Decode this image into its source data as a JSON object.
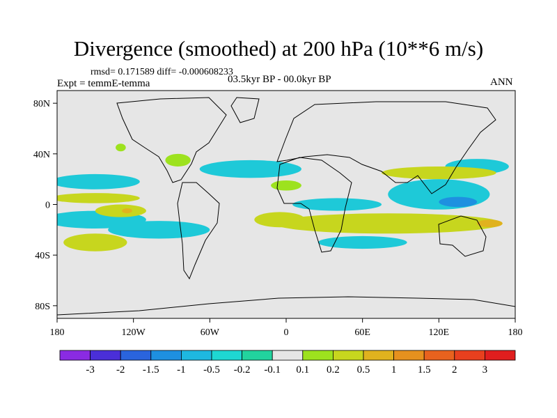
{
  "chart_data": {
    "type": "heatmap",
    "title": "Divergence (smoothed) at 200 hPa (10**6 m/s)",
    "stats_text": "rmsd= 0.171589 diff= -0.000608233",
    "left_label": "Expt = temmE-temma",
    "center_label": "03.5kyr BP - 00.0kyr BP",
    "right_label": "ANN",
    "x_axis": {
      "range": [
        -180,
        180
      ],
      "tick_labels": [
        "180",
        "120W",
        "60W",
        "0",
        "60E",
        "120E",
        "180"
      ]
    },
    "y_axis": {
      "range": [
        -90,
        90
      ],
      "tick_labels": [
        "80N",
        "40N",
        "0",
        "40S",
        "80S"
      ]
    },
    "colorbar": {
      "labels": [
        "-3",
        "-2",
        "-1.5",
        "-1",
        "-0.5",
        "-0.2",
        "-0.1",
        "0.1",
        "0.2",
        "0.5",
        "1",
        "1.5",
        "2",
        "3"
      ],
      "colors": [
        "#8a2be2",
        "#4a2fd8",
        "#2a64dd",
        "#1e90e0",
        "#1eb8e0",
        "#1ed7d2",
        "#22d39e",
        "#e6e6e6",
        "#9de21e",
        "#c7d61e",
        "#e0b21e",
        "#e6911e",
        "#e8621e",
        "#e8401e",
        "#e01e1e"
      ]
    },
    "regions": [
      {
        "label": "negative",
        "color": "#1ec9d8",
        "lon": -150,
        "lat": 18,
        "rx": 35,
        "ry": 6
      },
      {
        "label": "negative",
        "color": "#1ec9d8",
        "lon": -150,
        "lat": -12,
        "rx": 40,
        "ry": 7
      },
      {
        "label": "negative",
        "color": "#1ec9d8",
        "lon": -100,
        "lat": -20,
        "rx": 40,
        "ry": 7
      },
      {
        "label": "negative",
        "color": "#1ec9d8",
        "lon": -28,
        "lat": 28,
        "rx": 40,
        "ry": 7
      },
      {
        "label": "negative",
        "color": "#1ec9d8",
        "lon": 40,
        "lat": 0,
        "rx": 35,
        "ry": 5
      },
      {
        "label": "negative",
        "color": "#1ec9d8",
        "lon": 120,
        "lat": 8,
        "rx": 40,
        "ry": 12
      },
      {
        "label": "negative",
        "color": "#1ec9d8",
        "lon": 60,
        "lat": -30,
        "rx": 35,
        "ry": 5
      },
      {
        "label": "negative",
        "color": "#1ec9d8",
        "lon": 150,
        "lat": 30,
        "rx": 25,
        "ry": 6
      },
      {
        "label": "negative",
        "color": "#1e90e0",
        "lon": 135,
        "lat": 2,
        "rx": 15,
        "ry": 4
      },
      {
        "label": "positive",
        "color": "#c7d61e",
        "lon": -150,
        "lat": -30,
        "rx": 25,
        "ry": 7
      },
      {
        "label": "positive",
        "color": "#c7d61e",
        "lon": -150,
        "lat": 5,
        "rx": 35,
        "ry": 4
      },
      {
        "label": "positive",
        "color": "#c7d61e",
        "lon": -130,
        "lat": -5,
        "rx": 20,
        "ry": 5
      },
      {
        "label": "positive",
        "color": "#c7d61e",
        "lon": -5,
        "lat": -12,
        "rx": 20,
        "ry": 6
      },
      {
        "label": "positive",
        "color": "#c7d61e",
        "lon": 80,
        "lat": -15,
        "rx": 90,
        "ry": 8
      },
      {
        "label": "positive",
        "color": "#c7d61e",
        "lon": 120,
        "lat": 25,
        "rx": 45,
        "ry": 5
      },
      {
        "label": "positive",
        "color": "#9de21e",
        "lon": -85,
        "lat": 35,
        "rx": 10,
        "ry": 5
      },
      {
        "label": "positive",
        "color": "#9de21e",
        "lon": -130,
        "lat": 45,
        "rx": 4,
        "ry": 3
      },
      {
        "label": "positive",
        "color": "#9de21e",
        "lon": 0,
        "lat": 15,
        "rx": 12,
        "ry": 4
      },
      {
        "label": "positive",
        "color": "#e0b21e",
        "lon": -125,
        "lat": -5,
        "rx": 4,
        "ry": 2
      },
      {
        "label": "positive",
        "color": "#e0b21e",
        "lon": 160,
        "lat": -15,
        "rx": 10,
        "ry": 3
      }
    ]
  }
}
